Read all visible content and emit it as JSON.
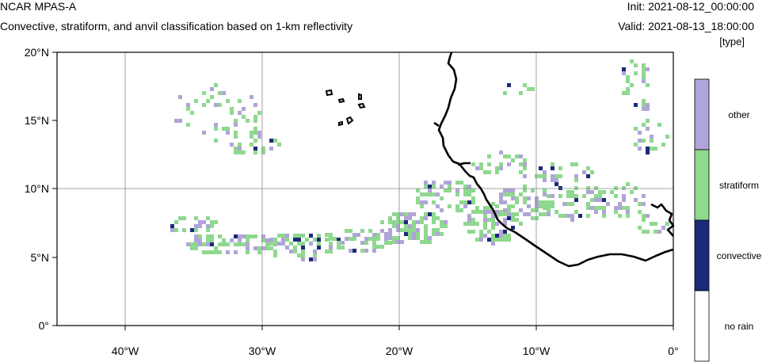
{
  "header": {
    "model": "NCAR MPAS-A",
    "subtitle": "Convective, stratiform, and anvil classification based on 1-km reflectivity",
    "init": "Init: 2021-08-12_00:00:00",
    "valid": "Valid: 2021-08-13_18:00:00",
    "units": "[type]"
  },
  "map": {
    "lon_range": [
      -45,
      0
    ],
    "lat_range": [
      0,
      20
    ],
    "x_ticks": [
      "40°W",
      "30°W",
      "20°W",
      "10°W",
      "0°"
    ],
    "y_ticks": [
      "20°N",
      "15°N",
      "10°N",
      "5°N",
      "0°"
    ],
    "grid_lines": [
      "10°N",
      "40°W",
      "30°W",
      "20°W",
      "10°W"
    ]
  },
  "legend": {
    "categories": [
      {
        "label": "other",
        "color": "#b0a4d8"
      },
      {
        "label": "stratiform",
        "color": "#8fd88f"
      },
      {
        "label": "convective",
        "color": "#1c2a7a"
      },
      {
        "label": "no rain",
        "color": "#ffffff"
      }
    ]
  },
  "colors": {
    "other": "#b0a4d8",
    "stratiform": "#8fd88f",
    "convective": "#1c2a7a",
    "coast": "#000000"
  }
}
